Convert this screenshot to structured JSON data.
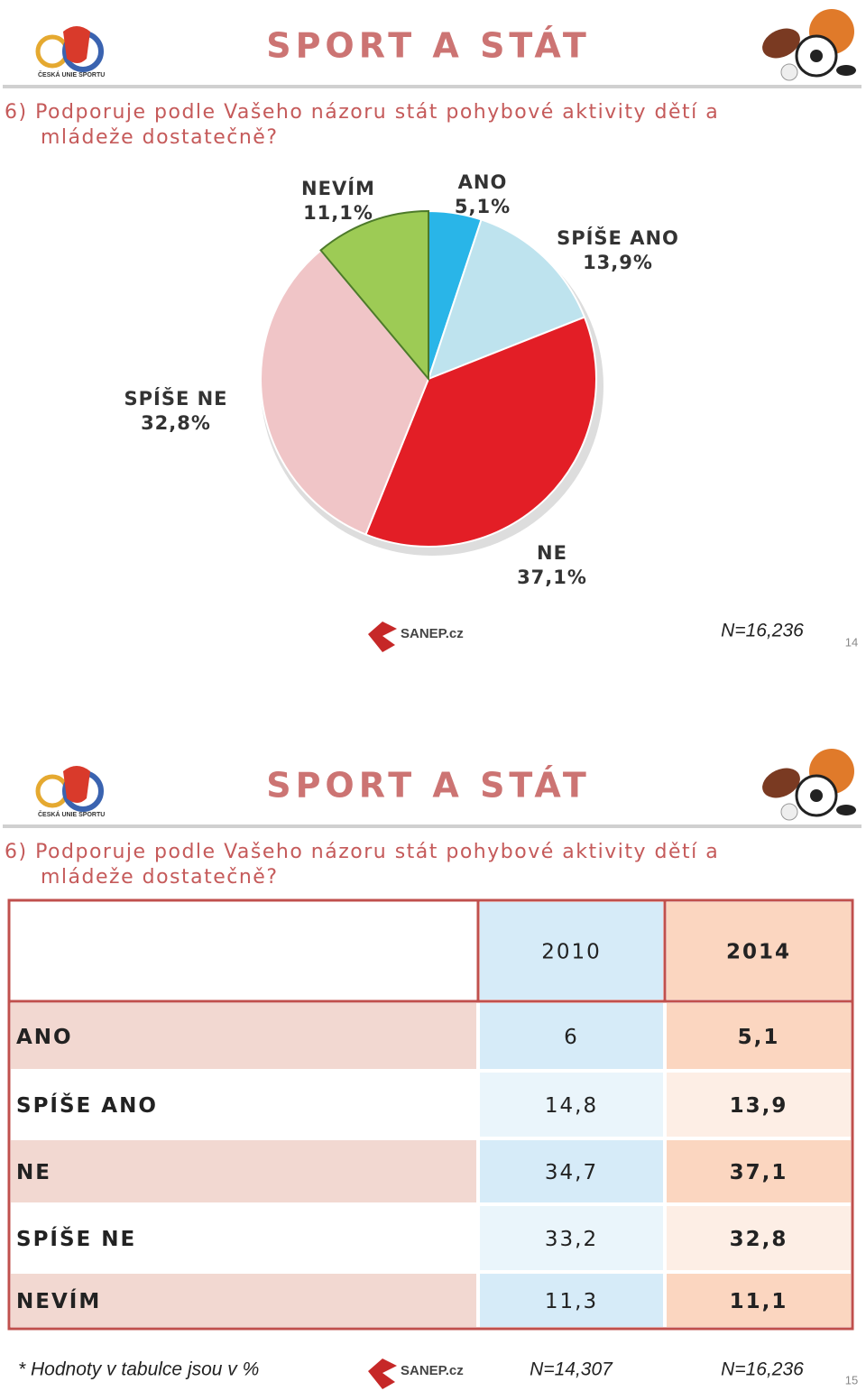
{
  "slides": [
    {
      "title": "SPORT A STÁT",
      "logo": "ČESKÁ UNIE SPORTU",
      "question": [
        "6) Podporuje podle Vašeho názoru stát pohybové aktivity dětí a",
        "mládeže dostatečně?"
      ],
      "sanep": "SANEP.cz",
      "n": "N=16,236",
      "page": "14"
    },
    {
      "title": "SPORT A STÁT",
      "logo": "ČESKÁ UNIE SPORTU",
      "question": [
        "6) Podporuje podle Vašeho názoru stát pohybové aktivity dětí a",
        "mládeže dostatečně?"
      ],
      "sanep": "SANEP.cz",
      "note": "* Hodnoty v tabulce jsou v %",
      "n": [
        "N=14,307",
        "N=16,236"
      ],
      "page": "15"
    }
  ],
  "chart_data": {
    "type": "pie",
    "categories": [
      "ANO",
      "SPÍŠE ANO",
      "NE",
      "SPÍŠE NE",
      "NEVÍM"
    ],
    "values": [
      5.1,
      13.9,
      37.1,
      32.8,
      11.1
    ],
    "value_labels": [
      "5,1%",
      "13,9%",
      "37,1%",
      "32,8%",
      "11,1%"
    ],
    "colors": [
      "#29b5e8",
      "#bee3ee",
      "#e31e26",
      "#f0c5c7",
      "#9dcb55"
    ]
  },
  "table": {
    "columns": [
      "2010",
      "2014"
    ],
    "rows": [
      {
        "label": "ANO",
        "values": [
          "6",
          "5,1"
        ]
      },
      {
        "label": "SPÍŠE ANO",
        "values": [
          "14,8",
          "13,9"
        ]
      },
      {
        "label": "NE",
        "values": [
          "34,7",
          "37,1"
        ]
      },
      {
        "label": "SPÍŠE NE",
        "values": [
          "33,2",
          "32,8"
        ]
      },
      {
        "label": "NEVÍM",
        "values": [
          "11,3",
          "11,1"
        ]
      }
    ]
  }
}
